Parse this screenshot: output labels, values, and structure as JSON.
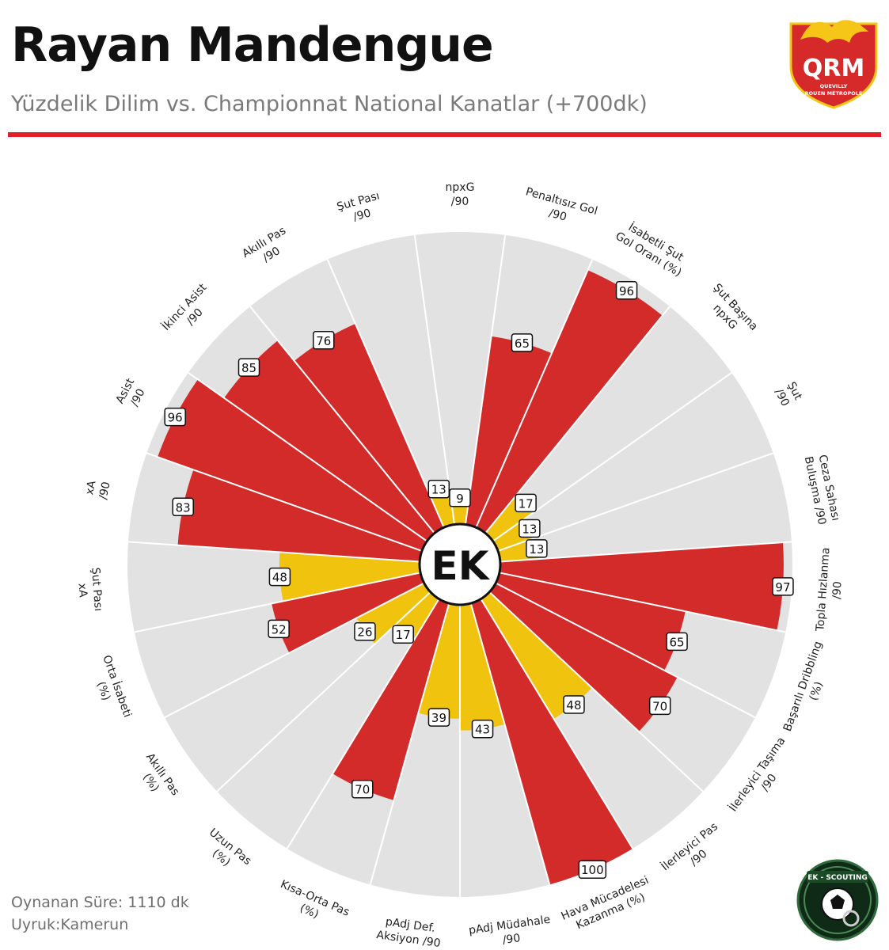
{
  "header": {
    "title": "Rayan Mandengue",
    "subtitle": "Yüzdelik Dilim vs. Championnat National Kanatlar (+700dk)"
  },
  "logo": {
    "initials": "QRM",
    "line1": "QUEVILLY",
    "line2": "ROUEN MÉTROPOLE"
  },
  "badge": {
    "text": "EK - SCOUTING"
  },
  "footer": {
    "minutes": "Oynanan Süre: 1110 dk",
    "nationality": "Uyruk:Kamerun"
  },
  "chart_data": {
    "type": "polar-bar",
    "center_label": "EK",
    "range": [
      0,
      100
    ],
    "colors": {
      "high": "#d32a2a",
      "low": "#f0c30f",
      "background": "#e2e2e2"
    },
    "categories": [
      {
        "label": [
          "npxG",
          "/90"
        ],
        "value": 9
      },
      {
        "label": [
          "Penaltısız Gol",
          "/90"
        ],
        "value": 65
      },
      {
        "label": [
          "İsabetli Şut",
          "Gol Oranı (%)"
        ],
        "value": 96
      },
      {
        "label": [
          "Şut Başına",
          "npxG"
        ],
        "value": 17
      },
      {
        "label": [
          "Şut",
          "/90"
        ],
        "value": 13
      },
      {
        "label": [
          "Ceza Sahası",
          "Buluşma /90"
        ],
        "value": 13
      },
      {
        "label": [
          "Topla Hızlanma",
          "/90"
        ],
        "value": 97
      },
      {
        "label": [
          "Başarılı Dribbling",
          "(%)"
        ],
        "value": 65
      },
      {
        "label": [
          "İlerleyici Taşıma",
          "/90"
        ],
        "value": 70
      },
      {
        "label": [
          "İlerleyici Pas",
          "/90"
        ],
        "value": 48
      },
      {
        "label": [
          "Hava Mücadelesi",
          "Kazanma (%)"
        ],
        "value": 100
      },
      {
        "label": [
          "pAdj Müdahale",
          "/90"
        ],
        "value": 43
      },
      {
        "label": [
          "pAdj Def.",
          "Aksiyon /90"
        ],
        "value": 39
      },
      {
        "label": [
          "Kısa-Orta Pas",
          "(%)"
        ],
        "value": 70
      },
      {
        "label": [
          "Uzun Pas",
          "(%)"
        ],
        "value": 17
      },
      {
        "label": [
          "Akıllı Pas",
          "(%)"
        ],
        "value": 26
      },
      {
        "label": [
          "Orta İsabeti",
          "(%)"
        ],
        "value": 52
      },
      {
        "label": [
          "Şut Pası",
          "xA"
        ],
        "value": 48
      },
      {
        "label": [
          "xA",
          "/90"
        ],
        "value": 83
      },
      {
        "label": [
          "Asist",
          "/90"
        ],
        "value": 96
      },
      {
        "label": [
          "İkinci Asist",
          "/90"
        ],
        "value": 85
      },
      {
        "label": [
          "Akıllı Pas",
          "/90"
        ],
        "value": 76
      },
      {
        "label": [
          "Şut Pası",
          "/90"
        ],
        "value": 13
      }
    ]
  }
}
